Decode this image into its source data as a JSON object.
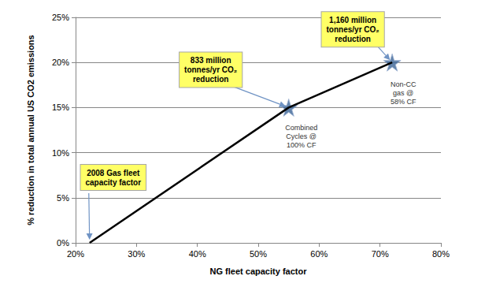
{
  "chart_data": {
    "type": "line",
    "x_label": "NG fleet capacity factor",
    "y_label": "% reduction in total annual US CO2 emissions",
    "xlim": [
      20,
      80
    ],
    "xticks": [
      {
        "value": 20,
        "label": "20%"
      },
      {
        "value": 30,
        "label": "30%"
      },
      {
        "value": 40,
        "label": "40%"
      },
      {
        "value": 50,
        "label": "50%"
      },
      {
        "value": 60,
        "label": "60%"
      },
      {
        "value": 70,
        "label": "70%"
      },
      {
        "value": 80,
        "label": "80%"
      }
    ],
    "ylim": [
      0,
      25
    ],
    "yticks": [
      {
        "value": 0,
        "label": "0%"
      },
      {
        "value": 5,
        "label": "5%"
      },
      {
        "value": 10,
        "label": "10%"
      },
      {
        "value": 15,
        "label": "15%"
      },
      {
        "value": 20,
        "label": "20%"
      },
      {
        "value": 25,
        "label": "25%"
      }
    ],
    "grid": "y",
    "series": [
      {
        "type": "line",
        "color": "#000000",
        "marker": "none",
        "x": [
          22.3,
          55,
          72
        ],
        "values": [
          0,
          15,
          20
        ]
      },
      {
        "type": "scatter",
        "color": "#3b6496",
        "marker": "star",
        "x": [
          55,
          72
        ],
        "values": [
          15,
          20
        ]
      }
    ],
    "annotations": [
      {
        "text": "2008 Gas fleet\ncapacity factor",
        "x": 22.3,
        "y": 0,
        "boxed": true
      },
      {
        "text": "833 million\ntonnes/yr CO₂\nreduction",
        "x": 55,
        "y": 15,
        "boxed": true
      },
      {
        "text": "1,160 million\ntonnes/yr CO₂\nreduction",
        "x": 72,
        "y": 20,
        "boxed": true
      },
      {
        "text": "Combined\nCycles @\n100% CF",
        "x": 55,
        "y": 15,
        "boxed": false
      },
      {
        "text": "Non-CC\ngas @\n58% CF",
        "x": 72,
        "y": 20,
        "boxed": false
      }
    ]
  }
}
